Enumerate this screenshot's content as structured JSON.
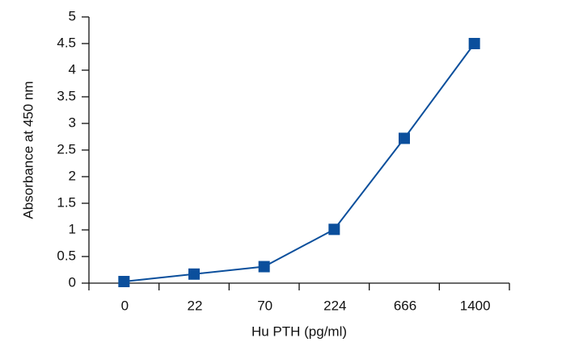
{
  "chart_data": {
    "type": "line",
    "x_label": "Hu PTH (pg/ml)",
    "y_label": "Absorbance at 450 nm",
    "categories": [
      "0",
      "22",
      "70",
      "224",
      "666",
      "1400"
    ],
    "series": [
      {
        "color": "#0b4f9c",
        "values": [
          0.03,
          0.17,
          0.31,
          1.01,
          2.72,
          4.5
        ]
      }
    ],
    "ylim": [
      0,
      5
    ],
    "yticks": [
      0,
      0.5,
      1,
      1.5,
      2,
      2.5,
      3,
      3.5,
      4,
      4.5,
      5
    ],
    "grid": false
  }
}
